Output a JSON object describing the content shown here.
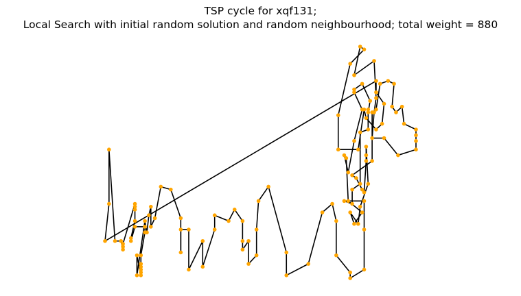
{
  "chart_data": {
    "type": "scatter",
    "title_line1": "TSP cycle for xqf131;",
    "title_line2": "Local Search with initial random solution and random neighbourhood; total weight = 880",
    "xlabel": "",
    "ylabel": "",
    "axes_visible": false,
    "grid": false,
    "xlim": [
      0,
      108
    ],
    "ylim": [
      0,
      80
    ],
    "node_color": "#ffa500",
    "edge_color": "#000000",
    "tour": [
      [
        0,
        13
      ],
      [
        2,
        26
      ],
      [
        2,
        45
      ],
      [
        5,
        13
      ],
      [
        8,
        13
      ],
      [
        9,
        10
      ],
      [
        9,
        11
      ],
      [
        9,
        12
      ],
      [
        15,
        26
      ],
      [
        15,
        25
      ],
      [
        15,
        24
      ],
      [
        15,
        20
      ],
      [
        13,
        14
      ],
      [
        13,
        13
      ],
      [
        15,
        18
      ],
      [
        20,
        18
      ],
      [
        20,
        16
      ],
      [
        18,
        8
      ],
      [
        18,
        5
      ],
      [
        18,
        4
      ],
      [
        18,
        3
      ],
      [
        18,
        2
      ],
      [
        18,
        1
      ],
      [
        16,
        8
      ],
      [
        16,
        1
      ],
      [
        20,
        20
      ],
      [
        21,
        16
      ],
      [
        22,
        22
      ],
      [
        23,
        25
      ],
      [
        23,
        18
      ],
      [
        25,
        21
      ],
      [
        28,
        32
      ],
      [
        33,
        31
      ],
      [
        38,
        21
      ],
      [
        38,
        9
      ],
      [
        38,
        17
      ],
      [
        42,
        17
      ],
      [
        42,
        3
      ],
      [
        49,
        13
      ],
      [
        49,
        4
      ],
      [
        55,
        17
      ],
      [
        55,
        22
      ],
      [
        62,
        20
      ],
      [
        65,
        24
      ],
      [
        69,
        20
      ],
      [
        69,
        13
      ],
      [
        69,
        10
      ],
      [
        72,
        13
      ],
      [
        72,
        5
      ],
      [
        76,
        8
      ],
      [
        76,
        17
      ],
      [
        77,
        27
      ],
      [
        82,
        32
      ],
      [
        91,
        9
      ],
      [
        91,
        1
      ],
      [
        102,
        5
      ],
      [
        109,
        23
      ],
      [
        114,
        26
      ],
      [
        116,
        20
      ],
      [
        116,
        8
      ],
      [
        123,
        2
      ],
      [
        123,
        0
      ],
      [
        130,
        3
      ],
      [
        130,
        17
      ],
      [
        130,
        27
      ],
      [
        120,
        27
      ],
      [
        124,
        26
      ],
      [
        124,
        31
      ],
      [
        128,
        33
      ],
      [
        128,
        51
      ],
      [
        132,
        52
      ],
      [
        132,
        59
      ],
      [
        132,
        58
      ],
      [
        133,
        62
      ],
      [
        129,
        68
      ],
      [
        125,
        66
      ],
      [
        125,
        65
      ],
      [
        129,
        59
      ],
      [
        125,
        48
      ],
      [
        122,
        37
      ],
      [
        120,
        43
      ],
      [
        121,
        42
      ],
      [
        122,
        27
      ],
      [
        129,
        23
      ],
      [
        125,
        19
      ],
      [
        123,
        23
      ],
      [
        127,
        19
      ],
      [
        128,
        25
      ],
      [
        132,
        33
      ],
      [
        131,
        46
      ],
      [
        131,
        43
      ],
      [
        131,
        41
      ],
      [
        130,
        30
      ],
      [
        129,
        31
      ],
      [
        126,
        35
      ],
      [
        124,
        36
      ],
      [
        134,
        41
      ],
      [
        134,
        58
      ],
      [
        136,
        59
      ],
      [
        138,
        68
      ],
      [
        142,
        69
      ],
      [
        145,
        68
      ],
      [
        144,
        60
      ],
      [
        146,
        58
      ],
      [
        149,
        60
      ],
      [
        150,
        54
      ],
      [
        156,
        52
      ],
      [
        156,
        50
      ],
      [
        156,
        48
      ],
      [
        156,
        45
      ],
      [
        147,
        43
      ],
      [
        140,
        49
      ],
      [
        134,
        49
      ],
      [
        135,
        58
      ],
      [
        136,
        63
      ],
      [
        135,
        76
      ],
      [
        125,
        71
      ],
      [
        128,
        81
      ],
      [
        130,
        80
      ],
      [
        123,
        75
      ],
      [
        117,
        57
      ],
      [
        117,
        45
      ],
      [
        127,
        45
      ],
      [
        130,
        59
      ],
      [
        131,
        56
      ],
      [
        136,
        52
      ],
      [
        139,
        54
      ],
      [
        140,
        61
      ],
      [
        136,
        65
      ],
      [
        136,
        69
      ]
    ]
  }
}
